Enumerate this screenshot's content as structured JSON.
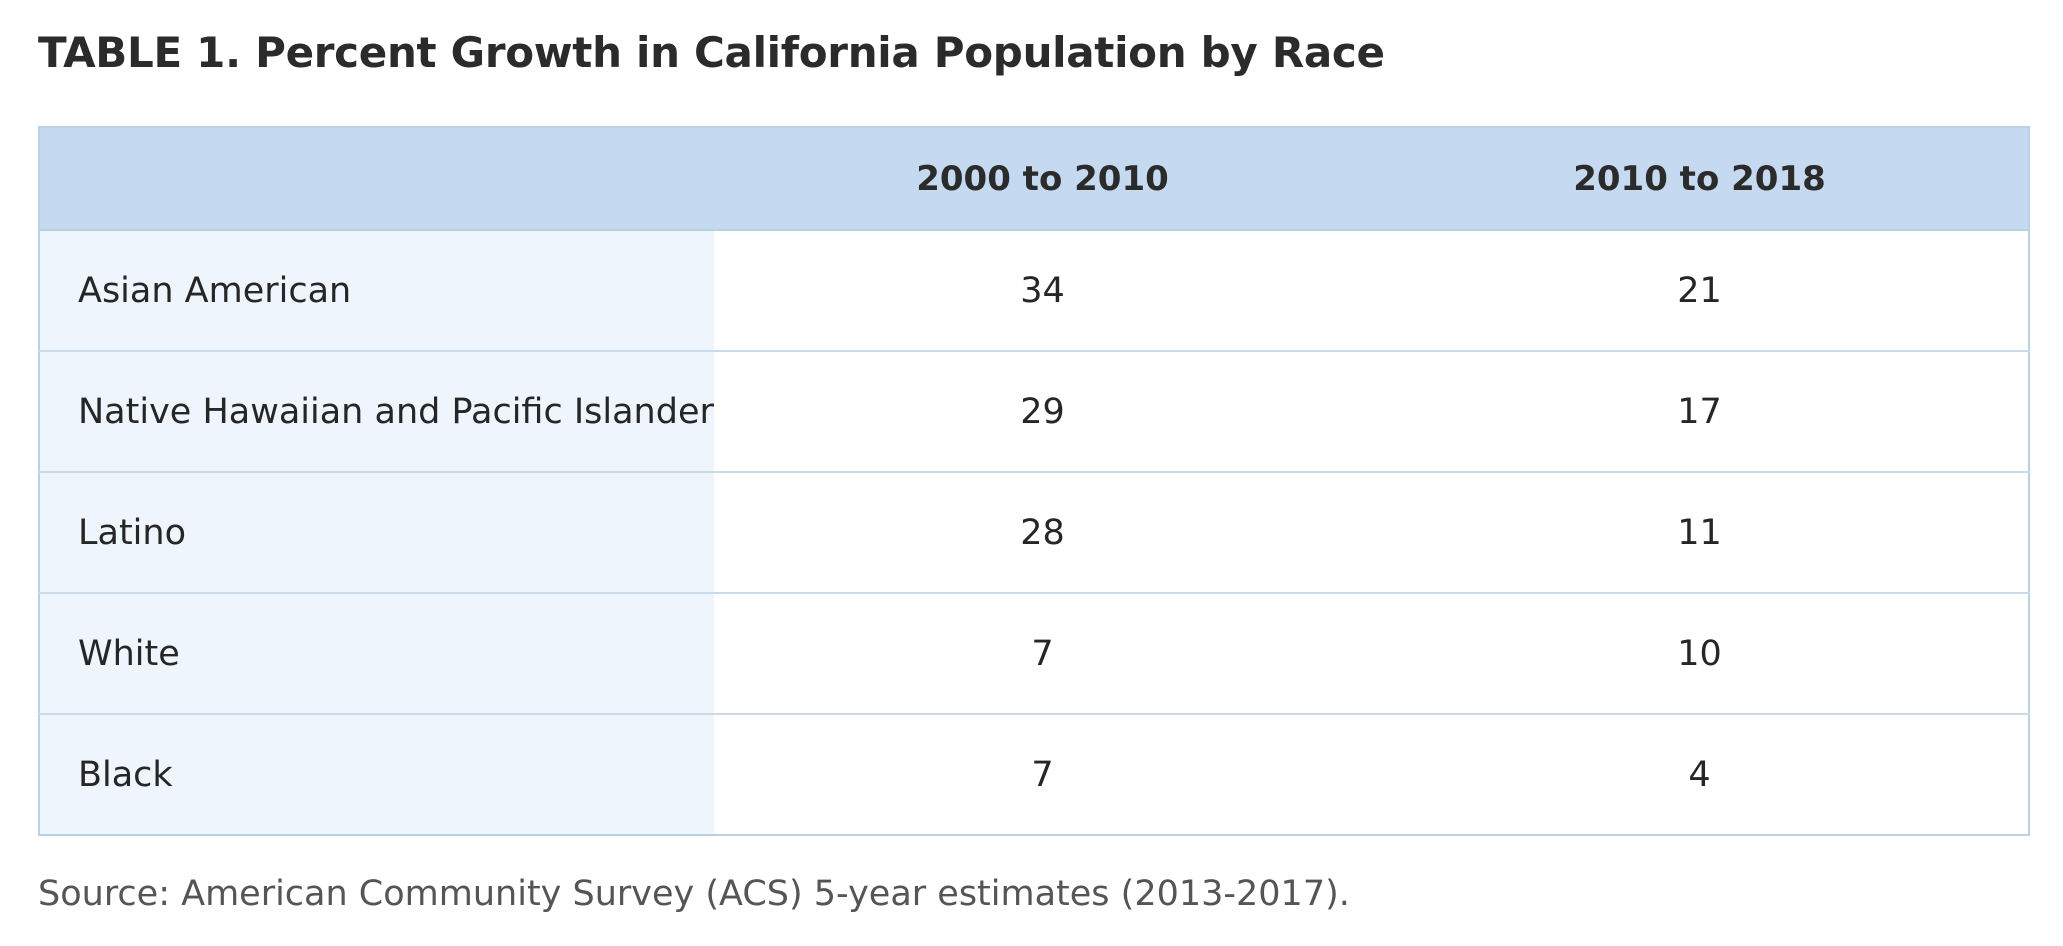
{
  "chart_data": {
    "type": "table",
    "title": "TABLE 1. Percent Growth in California Population by Race",
    "columns": [
      "",
      "2000 to 2010",
      "2010 to 2018"
    ],
    "rows": [
      {
        "label": "Asian American",
        "values": [
          "34",
          "21"
        ]
      },
      {
        "label": "Native Hawaiian and Pacific Islander",
        "values": [
          "29",
          "17"
        ]
      },
      {
        "label": "Latino",
        "values": [
          "28",
          "11"
        ]
      },
      {
        "label": "White",
        "values": [
          "7",
          "10"
        ]
      },
      {
        "label": "Black",
        "values": [
          "7",
          "4"
        ]
      }
    ],
    "source": "Source: American Community Survey (ACS) 5-year estimates (2013-2017).",
    "colors": {
      "header_bg": "#c5daf1",
      "label_column_bg": "#eff5fc",
      "border": "#b9d1e4"
    }
  }
}
